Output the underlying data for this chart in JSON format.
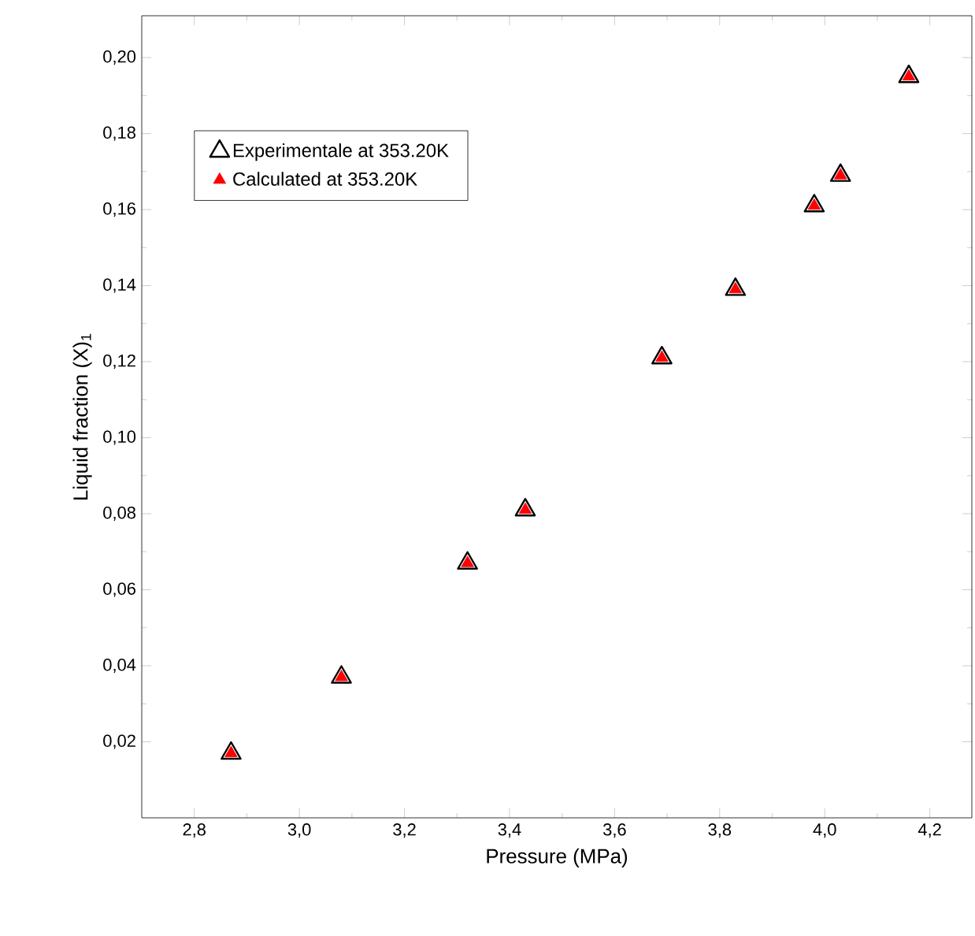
{
  "chart_data": {
    "type": "scatter",
    "xlabel": "Pressure  (MPa)",
    "ylabel": "Liquid fraction (X)$_{1}$",
    "x": [
      2.87,
      3.08,
      3.32,
      3.43,
      3.69,
      3.83,
      3.98,
      4.03,
      4.16
    ],
    "series": [
      {
        "name": "Experimentale  at 353.20K",
        "color": "#000000",
        "values": [
          0.017,
          0.037,
          0.067,
          0.081,
          0.121,
          0.139,
          0.161,
          0.169,
          0.195
        ]
      },
      {
        "name": "Calculated  at 353.20K",
        "color": "#ff0000",
        "values": [
          0.017,
          0.037,
          0.067,
          0.081,
          0.121,
          0.139,
          0.161,
          0.169,
          0.195
        ]
      }
    ],
    "xlim": [
      2.7,
      4.28
    ],
    "ylim": [
      0,
      0.211
    ],
    "xticks": [
      {
        "value": 2.8,
        "label": "2,8"
      },
      {
        "value": 3.0,
        "label": "3,0"
      },
      {
        "value": 3.2,
        "label": "3,2"
      },
      {
        "value": 3.4,
        "label": "3,4"
      },
      {
        "value": 3.6,
        "label": "3,6"
      },
      {
        "value": 3.8,
        "label": "3,8"
      },
      {
        "value": 4.0,
        "label": "4,0"
      },
      {
        "value": 4.2,
        "label": "4,2"
      }
    ],
    "yticks": [
      {
        "value": 0.02,
        "label": "0,02"
      },
      {
        "value": 0.04,
        "label": "0,04"
      },
      {
        "value": 0.06,
        "label": "0,06"
      },
      {
        "value": 0.08,
        "label": "0,08"
      },
      {
        "value": 0.1,
        "label": "0,10"
      },
      {
        "value": 0.12,
        "label": "0,12"
      },
      {
        "value": 0.14,
        "label": "0,14"
      },
      {
        "value": 0.16,
        "label": "0,16"
      },
      {
        "value": 0.18,
        "label": "0,18"
      },
      {
        "value": 0.2,
        "label": "0,20"
      }
    ],
    "grid": false,
    "legend": "top left",
    "marker": "triangle"
  }
}
